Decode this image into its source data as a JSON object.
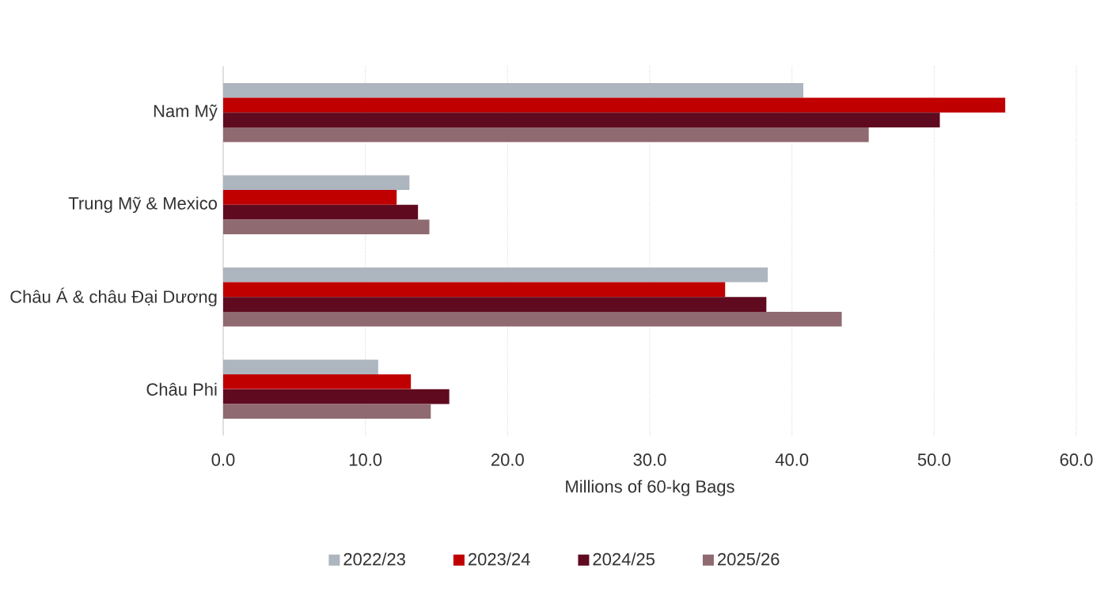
{
  "chart_data": {
    "type": "bar",
    "orientation": "horizontal",
    "categories": [
      "Nam Mỹ",
      "Trung Mỹ & Mexico",
      "Châu Á & châu Đại Dương",
      "Châu Phi"
    ],
    "series": [
      {
        "name": "2022/23",
        "color": "#adb5bf",
        "values": [
          40.8,
          13.1,
          38.3,
          10.9
        ]
      },
      {
        "name": "2023/24",
        "color": "#c00000",
        "values": [
          55.0,
          12.2,
          35.3,
          13.2
        ]
      },
      {
        "name": "2024/25",
        "color": "#600a1f",
        "values": [
          50.4,
          13.7,
          38.2,
          15.9
        ]
      },
      {
        "name": "2025/26",
        "color": "#8f6a70",
        "values": [
          45.4,
          14.5,
          43.5,
          14.6
        ]
      }
    ],
    "xlabel": "Millions of 60-kg Bags",
    "xlim": [
      0,
      60
    ],
    "xticks": [
      {
        "value": 0,
        "label": "0.0"
      },
      {
        "value": 10,
        "label": "10.0"
      },
      {
        "value": 20,
        "label": "20.0"
      },
      {
        "value": 30,
        "label": "30.0"
      },
      {
        "value": 40,
        "label": "40.0"
      },
      {
        "value": 50,
        "label": "50.0"
      },
      {
        "value": 60,
        "label": "60.0"
      }
    ],
    "grid": "x",
    "legend": "bottom"
  }
}
